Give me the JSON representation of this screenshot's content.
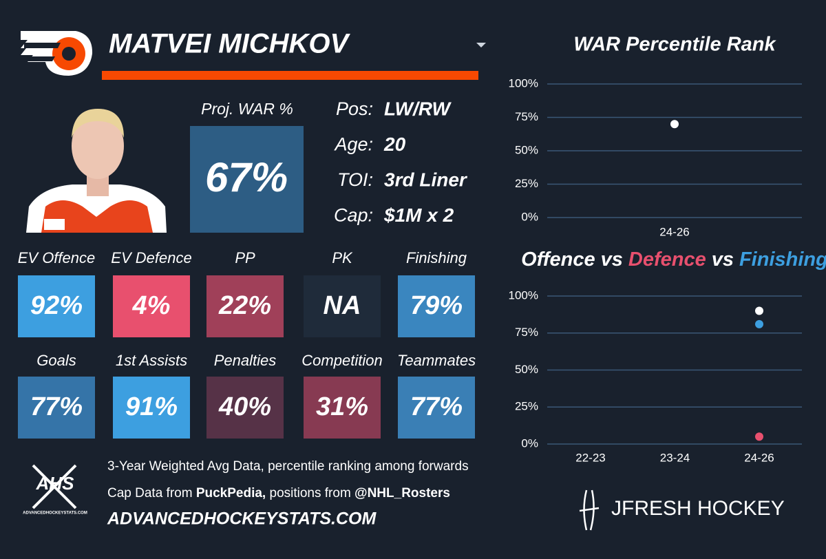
{
  "player": {
    "name": "MATVEI MICHKOV"
  },
  "proj_war": {
    "label": "Proj. WAR %",
    "value": "67%",
    "color": "#2d5d84"
  },
  "info": [
    {
      "label": "Pos:",
      "value": "LW/RW"
    },
    {
      "label": "Age:",
      "value": "20"
    },
    {
      "label": "TOI:",
      "value": "3rd Liner"
    },
    {
      "label": "Cap:",
      "value": "$1M x 2"
    }
  ],
  "tiles": [
    {
      "label": "EV Offence",
      "value": "92%",
      "color": "#3d9fe0"
    },
    {
      "label": "EV Defence",
      "value": "4%",
      "color": "#e8506e"
    },
    {
      "label": "PP",
      "value": "22%",
      "color": "#a04059"
    },
    {
      "label": "PK",
      "value": "NA",
      "color": "#1f2b3a"
    },
    {
      "label": "Finishing",
      "value": "79%",
      "color": "#3a86bf"
    },
    {
      "label": "Goals",
      "value": "77%",
      "color": "#3574a8"
    },
    {
      "label": "1st Assists",
      "value": "91%",
      "color": "#3d9fe0"
    },
    {
      "label": "Penalties",
      "value": "40%",
      "color": "#563247"
    },
    {
      "label": "Competition",
      "value": "31%",
      "color": "#873a52"
    },
    {
      "label": "Teammates",
      "value": "77%",
      "color": "#3a7fb5"
    }
  ],
  "footer": {
    "line1": "3-Year Weighted Avg Data, percentile ranking among forwards",
    "line2": [
      "Cap Data from ",
      "PuckPedia,",
      " positions from ",
      "@NHL_Rosters"
    ],
    "site": "ADVANCEDHOCKEYSTATS.COM",
    "logo_text": "AHS",
    "logo_caption": "ADVANCEDHOCKEYSTATS.COM",
    "brand": "JFRESH HOCKEY"
  },
  "chart_data": [
    {
      "type": "scatter",
      "title": "WAR Percentile Rank",
      "categories": [
        "24-26"
      ],
      "values": [
        70
      ],
      "color": "#ffffff",
      "ylim": [
        0,
        100
      ],
      "yticks": [
        {
          "value": 0,
          "label": "0%"
        },
        {
          "value": 25,
          "label": "25%"
        },
        {
          "value": 50,
          "label": "50%"
        },
        {
          "value": 75,
          "label": "75%"
        },
        {
          "value": 100,
          "label": "100%"
        }
      ],
      "grid": true
    },
    {
      "type": "scatter",
      "title_joiner": "vs",
      "categories": [
        "22-23",
        "23-24",
        "24-26"
      ],
      "series": [
        {
          "name": "Offence",
          "color": "#ffffff",
          "values": [
            null,
            null,
            90
          ]
        },
        {
          "name": "Defence",
          "color": "#e8506e",
          "values": [
            null,
            null,
            5
          ]
        },
        {
          "name": "Finishing",
          "color": "#3d9fe0",
          "values": [
            null,
            null,
            81
          ]
        }
      ],
      "ylim": [
        0,
        100
      ],
      "yticks": [
        {
          "value": 0,
          "label": "0%"
        },
        {
          "value": 25,
          "label": "25%"
        },
        {
          "value": 50,
          "label": "50%"
        },
        {
          "value": 75,
          "label": "75%"
        },
        {
          "value": 100,
          "label": "100%"
        }
      ],
      "grid": true
    }
  ]
}
